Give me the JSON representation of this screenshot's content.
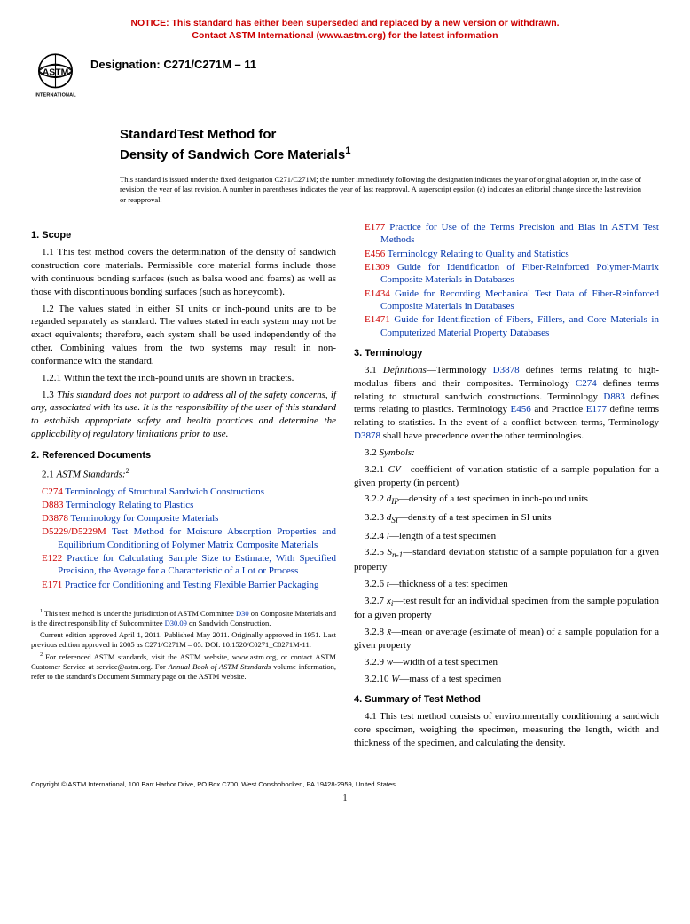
{
  "notice": {
    "line1": "NOTICE: This standard has either been superseded and replaced by a new version or withdrawn.",
    "line2": "Contact ASTM International (www.astm.org) for the latest information"
  },
  "logo_text_top": "ASTM",
  "logo_text_bottom": "INTERNATIONAL",
  "designation": "Designation: C271/C271M – 11",
  "title": {
    "line1": "StandardTest Method for",
    "line2": "Density of Sandwich Core Materials",
    "sup": "1"
  },
  "intro_note": "This standard is issued under the fixed designation C271/C271M; the number immediately following the designation indicates the year of original adoption or, in the case of revision, the year of last revision. A number in parentheses indicates the year of last reapproval. A superscript epsilon (ε) indicates an editorial change since the last revision or reapproval.",
  "sections": {
    "scope_head": "1. Scope",
    "scope_1_1": "1.1 This test method covers the determination of the density of sandwich construction core materials. Permissible core material forms include those with continuous bonding surfaces (such as balsa wood and foams) as well as those with discontinuous bonding surfaces (such as honeycomb).",
    "scope_1_2": "1.2 The values stated in either SI units or inch-pound units are to be regarded separately as standard. The values stated in each system may not be exact equivalents; therefore, each system shall be used independently of the other. Combining values from the two systems may result in non-conformance with the standard.",
    "scope_1_2_1": "1.2.1 Within the text the inch-pound units are shown in brackets.",
    "scope_1_3": "1.3 This standard does not purport to address all of the safety concerns, if any, associated with its use. It is the responsibility of the user of this standard to establish appropriate safety and health practices and determine the applicability of regulatory limitations prior to use.",
    "refs_head": "2. Referenced Documents",
    "refs_sub": "ASTM Standards:",
    "refs_sub_num": "2.1 ",
    "refs_sub_sup": "2",
    "term_head": "3. Terminology",
    "term_3_1_label": "Definitions",
    "term_3_2_label": "3.2 ",
    "term_3_2_sym": "Symbols:",
    "summary_head": "4. Summary of Test Method",
    "summary_4_1": "4.1 This test method consists of environmentally conditioning a sandwich core specimen, weighing the specimen, measuring the length, width and thickness of the specimen, and calculating the density."
  },
  "references_left": [
    {
      "code": "C274",
      "title": "Terminology of Structural Sandwich Constructions"
    },
    {
      "code": "D883",
      "title": "Terminology Relating to Plastics"
    },
    {
      "code": "D3878",
      "title": "Terminology for Composite Materials"
    },
    {
      "code": "D5229/D5229M",
      "title": "Test Method for Moisture Absorption Properties and Equilibrium Conditioning of Polymer Matrix Composite Materials"
    },
    {
      "code": "E122",
      "title": "Practice for Calculating Sample Size to Estimate, With Specified Precision, the Average for a Characteristic of a Lot or Process"
    },
    {
      "code": "E171",
      "title": "Practice for Conditioning and Testing Flexible Barrier Packaging"
    }
  ],
  "references_right": [
    {
      "code": "E177",
      "title": "Practice for Use of the Terms Precision and Bias in ASTM Test Methods"
    },
    {
      "code": "E456",
      "title": "Terminology Relating to Quality and Statistics"
    },
    {
      "code": "E1309",
      "title": "Guide for Identification of Fiber-Reinforced Polymer-Matrix Composite Materials in Databases"
    },
    {
      "code": "E1434",
      "title": "Guide for Recording Mechanical Test Data of Fiber-Reinforced Composite Materials in Databases"
    },
    {
      "code": "E1471",
      "title": "Guide for Identification of Fibers, Fillers, and Core Materials in Computerized Material Property Databases"
    }
  ],
  "term_3_1_parts": {
    "p1": "3.1 ",
    "p2": "—Terminology ",
    "d3878": "D3878",
    "p3": " defines terms relating to high-modulus fibers and their composites. Terminology ",
    "c274": "C274",
    "p4": " defines terms relating to structural sandwich constructions. Terminology ",
    "d883": "D883",
    "p5": " defines terms relating to plastics. Terminology ",
    "e456": "E456",
    "p6": " and Practice ",
    "e177": "E177",
    "p7": " define terms relating to statistics. In the event of a conflict between terms, Terminology ",
    "d3878b": "D3878",
    "p8": " shall have precedence over the other terminologies."
  },
  "symbols": [
    {
      "num": "3.2.1",
      "sym": "CV",
      "desc": "—coefficient of variation statistic of a sample population for a given property (in percent)"
    },
    {
      "num": "3.2.2",
      "sym": "d",
      "sub": "IP",
      "desc": "—density of a test specimen in inch-pound units"
    },
    {
      "num": "3.2.3",
      "sym": "d",
      "sub": "SI",
      "desc": "—density of a test specimen in SI units"
    },
    {
      "num": "3.2.4",
      "sym": "l",
      "desc": "—length of a test specimen"
    },
    {
      "num": "3.2.5",
      "sym": "S",
      "sub": "n-1",
      "desc": "—standard deviation statistic of a sample population for a given property"
    },
    {
      "num": "3.2.6",
      "sym": "t",
      "desc": "—thickness of a test specimen"
    },
    {
      "num": "3.2.7",
      "sym": "x",
      "sub": "i",
      "desc": "—test result for an individual specimen from the sample population for a given property"
    },
    {
      "num": "3.2.8",
      "sym": "x̄",
      "desc": "—mean or average (estimate of mean) of a sample population for a given property"
    },
    {
      "num": "3.2.9",
      "sym": "w",
      "desc": "—width of a test specimen"
    },
    {
      "num": "3.2.10",
      "sym": "W",
      "desc": "—mass of a test specimen"
    }
  ],
  "footnotes": {
    "fn1_a": "This test method is under the jurisdiction of ASTM Committee ",
    "fn1_d30": "D30",
    "fn1_b": " on Composite Materials and is the direct responsibility of Subcommittee ",
    "fn1_d3009": "D30.09",
    "fn1_c": " on Sandwich Construction.",
    "fn1_d": "Current edition approved April 1, 2011. Published May 2011. Originally approved in 1951. Last previous edition approved in 2005 as C271/C271M – 05. DOI: 10.1520/C0271_C0271M-11.",
    "fn2": "For referenced ASTM standards, visit the ASTM website, www.astm.org, or contact ASTM Customer Service at service@astm.org. For Annual Book of ASTM Standards volume information, refer to the standard's Document Summary page on the ASTM website.",
    "fn2_ital": "Annual Book of ASTM Standards"
  },
  "copyright": "Copyright © ASTM International, 100 Barr Harbor Drive, PO Box C700, West Conshohocken, PA 19428-2959, United States",
  "page_number": "1"
}
